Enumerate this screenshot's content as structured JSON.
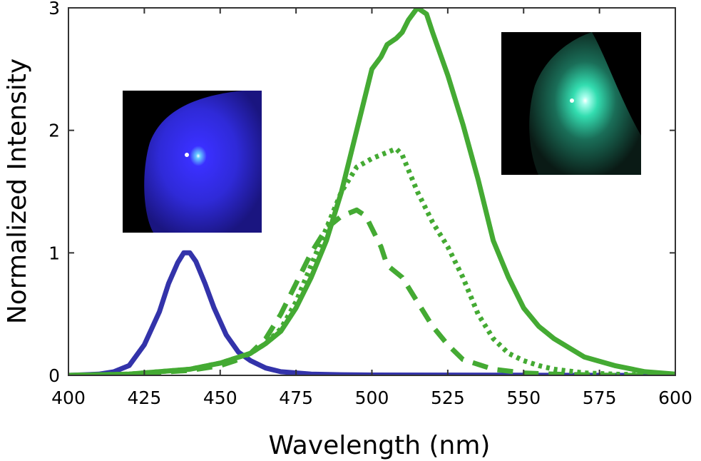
{
  "chart_data": {
    "type": "line",
    "xlabel": "Wavelength (nm)",
    "ylabel": "Normalized Intensity",
    "xlim": [
      400,
      600
    ],
    "ylim": [
      0,
      3
    ],
    "xticks": [
      "400",
      "425",
      "450",
      "475",
      "500",
      "525",
      "550",
      "575",
      "600"
    ],
    "yticks": [
      "0",
      "1",
      "2",
      "3"
    ],
    "grid": false,
    "series": [
      {
        "color": "#3333aa",
        "style": "solid",
        "x": [
          400,
          410,
          415,
          420,
          425,
          430,
          433,
          436,
          438,
          440,
          442,
          445,
          448,
          452,
          456,
          460,
          465,
          470,
          480,
          490,
          500,
          550,
          600
        ],
        "y": [
          0,
          0.01,
          0.03,
          0.08,
          0.25,
          0.52,
          0.75,
          0.92,
          1.0,
          1.0,
          0.93,
          0.75,
          0.55,
          0.33,
          0.19,
          0.12,
          0.06,
          0.03,
          0.01,
          0.005,
          0.003,
          0.001,
          0.0
        ]
      },
      {
        "color": "#44aa33",
        "style": "solid",
        "x": [
          400,
          420,
          440,
          450,
          460,
          465,
          470,
          475,
          480,
          485,
          490,
          495,
          500,
          503,
          505,
          508,
          510,
          512,
          515,
          518,
          520,
          525,
          530,
          535,
          540,
          545,
          550,
          555,
          560,
          570,
          580,
          590,
          600
        ],
        "y": [
          0,
          0.01,
          0.05,
          0.1,
          0.18,
          0.26,
          0.36,
          0.55,
          0.8,
          1.1,
          1.5,
          2.0,
          2.5,
          2.6,
          2.7,
          2.75,
          2.8,
          2.9,
          3.0,
          2.95,
          2.8,
          2.45,
          2.05,
          1.6,
          1.1,
          0.8,
          0.55,
          0.4,
          0.3,
          0.15,
          0.08,
          0.03,
          0.01
        ]
      },
      {
        "color": "#44aa33",
        "style": "dotted",
        "x": [
          400,
          420,
          440,
          450,
          460,
          465,
          470,
          475,
          480,
          485,
          490,
          495,
          500,
          505,
          508,
          510,
          515,
          520,
          525,
          530,
          535,
          540,
          545,
          550,
          555,
          560,
          570,
          580,
          600
        ],
        "y": [
          0,
          0.01,
          0.05,
          0.1,
          0.18,
          0.26,
          0.38,
          0.6,
          0.9,
          1.2,
          1.5,
          1.7,
          1.77,
          1.82,
          1.85,
          1.8,
          1.5,
          1.25,
          1.05,
          0.8,
          0.5,
          0.3,
          0.18,
          0.12,
          0.08,
          0.05,
          0.02,
          0.01,
          0.0
        ]
      },
      {
        "color": "#44aa33",
        "style": "dashed",
        "x": [
          400,
          420,
          440,
          450,
          455,
          460,
          465,
          470,
          475,
          480,
          485,
          490,
          495,
          498,
          500,
          503,
          505,
          510,
          515,
          520,
          525,
          530,
          540,
          550,
          560,
          580,
          600
        ],
        "y": [
          0,
          0.01,
          0.04,
          0.08,
          0.12,
          0.18,
          0.3,
          0.5,
          0.75,
          1.0,
          1.2,
          1.3,
          1.35,
          1.3,
          1.2,
          1.05,
          0.9,
          0.8,
          0.6,
          0.4,
          0.25,
          0.13,
          0.05,
          0.02,
          0.01,
          0.0,
          0.0
        ]
      }
    ]
  },
  "insets": [
    {
      "name": "blue-emission-photo",
      "glow": "#2222ee"
    },
    {
      "name": "green-emission-photo",
      "glow": "#33ffcc"
    }
  ]
}
